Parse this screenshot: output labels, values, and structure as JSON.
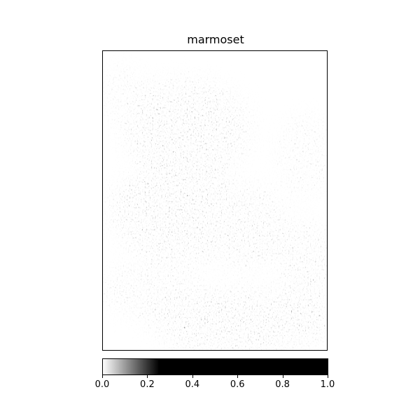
{
  "chart_data": {
    "type": "heatmap",
    "title": "marmoset",
    "xlabel": "",
    "ylabel": "",
    "colormap": "gray_r",
    "colorbar": {
      "orientation": "horizontal",
      "range": [
        0.0,
        1.0
      ],
      "saturation_value": 0.25,
      "ticks": [
        0.0,
        0.2,
        0.4,
        0.6,
        0.8,
        1.0
      ],
      "tick_labels": [
        "0.0",
        "0.2",
        "0.4",
        "0.6",
        "0.8",
        "1.0"
      ],
      "colors": [
        "#ffffff",
        "#000000"
      ]
    },
    "axes_ticks_visible": false
  }
}
